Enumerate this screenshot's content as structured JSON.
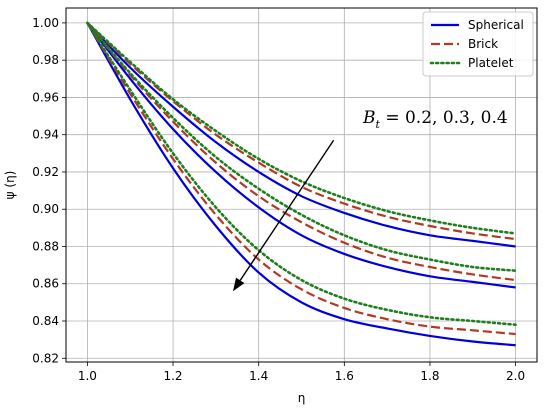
{
  "chart_data": {
    "type": "line",
    "xlabel": "η",
    "ylabel": "ψ (η)",
    "xlim": [
      0.95,
      2.05
    ],
    "ylim": [
      0.818,
      1.008
    ],
    "xticks": [
      1.0,
      1.2,
      1.4,
      1.6,
      1.8,
      2.0
    ],
    "xtick_labels": [
      "1.0",
      "1.2",
      "1.4",
      "1.6",
      "1.8",
      "2.0"
    ],
    "yticks": [
      0.82,
      0.84,
      0.86,
      0.88,
      0.9,
      0.92,
      0.94,
      0.96,
      0.98,
      1.0
    ],
    "ytick_labels": [
      "0.82",
      "0.84",
      "0.86",
      "0.88",
      "0.90",
      "0.92",
      "0.94",
      "0.96",
      "0.98",
      "1.00"
    ],
    "grid": true,
    "legend_position": "top-right",
    "legend": [
      {
        "label": "Spherical",
        "color": "#0000dd",
        "style": "solid"
      },
      {
        "label": "Brick",
        "color": "#b03a22",
        "style": "dashed"
      },
      {
        "label": "Platelet",
        "color": "#1f7f1f",
        "style": "dotted"
      }
    ],
    "annotation": {
      "text_b": "B",
      "text_sub": "t",
      "text_rest": " = 0.2, 0.3, 0.4",
      "arrow_from": [
        1.575,
        0.937
      ],
      "arrow_to": [
        1.34,
        0.856
      ]
    },
    "x": [
      1.0,
      1.1,
      1.2,
      1.3,
      1.4,
      1.5,
      1.6,
      1.7,
      1.8,
      1.9,
      2.0
    ],
    "series": [
      {
        "name": "Spherical",
        "group": "Bt=0.2",
        "style": "solid",
        "color": "#0000dd",
        "values": [
          1.0,
          0.976,
          0.955,
          0.936,
          0.92,
          0.907,
          0.898,
          0.891,
          0.886,
          0.883,
          0.88
        ]
      },
      {
        "name": "Brick",
        "group": "Bt=0.2",
        "style": "dashed",
        "color": "#b03a22",
        "values": [
          1.0,
          0.978,
          0.958,
          0.94,
          0.925,
          0.912,
          0.903,
          0.896,
          0.891,
          0.887,
          0.884
        ]
      },
      {
        "name": "Platelet",
        "group": "Bt=0.2",
        "style": "dotted",
        "color": "#1f7f1f",
        "values": [
          1.0,
          0.979,
          0.959,
          0.942,
          0.927,
          0.915,
          0.906,
          0.899,
          0.894,
          0.89,
          0.887
        ]
      },
      {
        "name": "Spherical",
        "group": "Bt=0.3",
        "style": "solid",
        "color": "#0000dd",
        "values": [
          1.0,
          0.97,
          0.943,
          0.92,
          0.901,
          0.886,
          0.876,
          0.869,
          0.864,
          0.861,
          0.858
        ]
      },
      {
        "name": "Brick",
        "group": "Bt=0.3",
        "style": "dashed",
        "color": "#b03a22",
        "values": [
          1.0,
          0.972,
          0.947,
          0.925,
          0.907,
          0.893,
          0.882,
          0.874,
          0.869,
          0.865,
          0.862
        ]
      },
      {
        "name": "Platelet",
        "group": "Bt=0.3",
        "style": "dotted",
        "color": "#1f7f1f",
        "values": [
          1.0,
          0.973,
          0.949,
          0.928,
          0.911,
          0.897,
          0.886,
          0.878,
          0.873,
          0.869,
          0.867
        ]
      },
      {
        "name": "Spherical",
        "group": "Bt=0.4",
        "style": "solid",
        "color": "#0000dd",
        "values": [
          1.0,
          0.959,
          0.922,
          0.891,
          0.866,
          0.85,
          0.841,
          0.836,
          0.832,
          0.829,
          0.827
        ]
      },
      {
        "name": "Brick",
        "group": "Bt=0.4",
        "style": "dashed",
        "color": "#b03a22",
        "values": [
          1.0,
          0.962,
          0.927,
          0.897,
          0.873,
          0.857,
          0.847,
          0.841,
          0.837,
          0.835,
          0.833
        ]
      },
      {
        "name": "Platelet",
        "group": "Bt=0.4",
        "style": "dotted",
        "color": "#1f7f1f",
        "values": [
          1.0,
          0.964,
          0.93,
          0.901,
          0.878,
          0.862,
          0.852,
          0.846,
          0.842,
          0.84,
          0.838
        ]
      }
    ]
  }
}
